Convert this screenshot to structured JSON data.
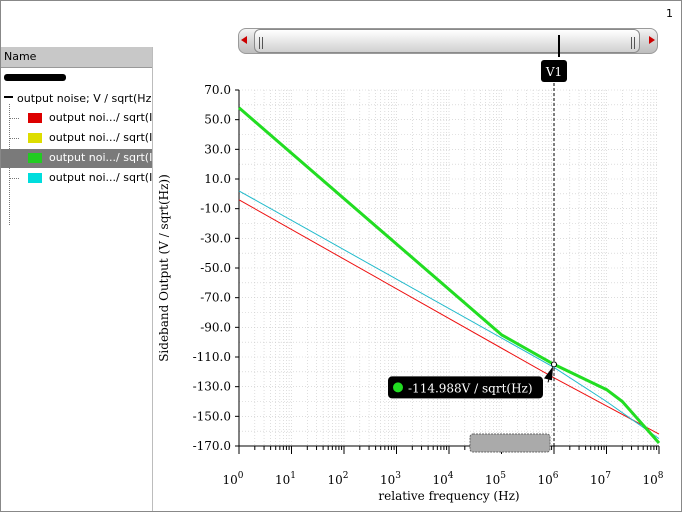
{
  "page_number": "1",
  "panel": {
    "header": "Name",
    "root_label": "output noise; V / sqrt(Hz",
    "items": [
      {
        "label": "output noi.../ sqrt(I",
        "color": "#dd0000",
        "selected": false
      },
      {
        "label": "output noi.../ sqrt(I",
        "color": "#dddd00",
        "selected": false
      },
      {
        "label": "output noi.../ sqrt(I",
        "color": "#22cc22",
        "selected": true
      },
      {
        "label": "output noi.../ sqrt(I",
        "color": "#00dddd",
        "selected": false
      }
    ]
  },
  "marker": {
    "label": "V1",
    "readout": "-114.988V / sqrt(Hz)",
    "x_value": 1000000,
    "y_value": -114.988
  },
  "chart_data": {
    "type": "line",
    "ylabel": "Sideband Output  (V / sqrt(Hz))",
    "xlabel": "relative frequency  (Hz)",
    "x_scale": "log",
    "xlim": [
      1,
      100000000
    ],
    "ylim": [
      -170,
      70
    ],
    "x_ticks": [
      {
        "base": "10",
        "exp": "0"
      },
      {
        "base": "10",
        "exp": "1"
      },
      {
        "base": "10",
        "exp": "2"
      },
      {
        "base": "10",
        "exp": "3"
      },
      {
        "base": "10",
        "exp": "4"
      },
      {
        "base": "10",
        "exp": "5"
      },
      {
        "base": "10",
        "exp": "6"
      },
      {
        "base": "10",
        "exp": "7"
      },
      {
        "base": "10",
        "exp": "8"
      }
    ],
    "y_ticks": [
      "70.0",
      "50.0",
      "30.0",
      "10.0",
      "-10.0",
      "-30.0",
      "-50.0",
      "-70.0",
      "-90.0",
      "-110.0",
      "-130.0",
      "-150.0",
      "-170.0"
    ],
    "grid": true,
    "series": [
      {
        "color": "#ee1111",
        "width": 1,
        "x": [
          1,
          1000000,
          10000000,
          100000000
        ],
        "y": [
          -4,
          -124,
          -143,
          -162
        ]
      },
      {
        "color": "#22bbcc",
        "width": 1,
        "x": [
          1,
          1000000,
          10000000,
          100000000
        ],
        "y": [
          2,
          -117,
          -140,
          -165
        ]
      },
      {
        "color": "#22dd22",
        "width": 3,
        "x": [
          1,
          100000,
          1000000,
          10000000,
          20000000,
          100000000
        ],
        "y": [
          58,
          -95,
          -115,
          -132,
          -140,
          -168
        ]
      }
    ]
  }
}
